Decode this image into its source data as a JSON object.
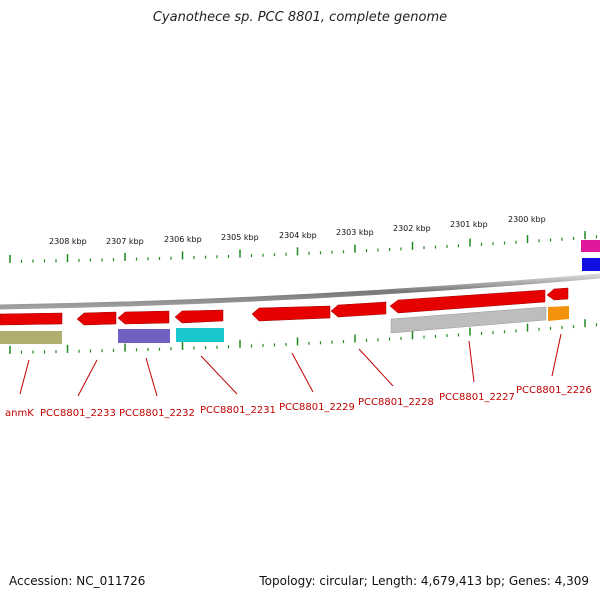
{
  "title": "Cyanothece sp. PCC 8801, complete genome",
  "scale_ticks": [
    "2308 kbp",
    "2307 kbp",
    "2306 kbp",
    "2305 kbp",
    "2304 kbp",
    "2303 kbp",
    "2302 kbp",
    "2301 kbp",
    "2300 kbp"
  ],
  "gene_labels": [
    "anmK",
    "PCC8801_2233",
    "PCC8801_2232",
    "PCC8801_2231",
    "PCC8801_2229",
    "PCC8801_2228",
    "PCC8801_2227",
    "PCC8801_2226"
  ],
  "colors": {
    "backbone": "#8a8a8a",
    "tick": "#1e8a1e",
    "label": "#c00000",
    "gene_red": "#e60000",
    "gene_olive": "#b0ae6e",
    "gene_purple": "#7060c0",
    "gene_cyan": "#18c8cc",
    "gene_gray": "#bdbdbd",
    "gene_orange": "#f4920c",
    "gene_pink": "#e0189c",
    "gene_blue": "#1010e0"
  },
  "footer": {
    "accession": "Accession: NC_011726",
    "summary": "Topology: circular; Length: 4,679,413 bp; Genes: 4,309"
  }
}
